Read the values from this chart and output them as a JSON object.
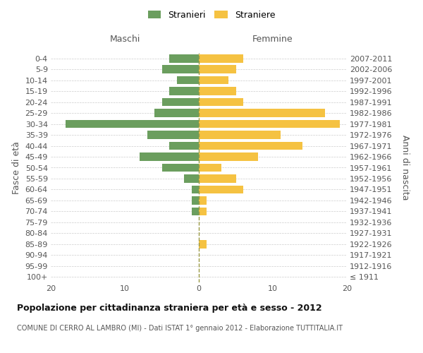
{
  "age_groups": [
    "100+",
    "95-99",
    "90-94",
    "85-89",
    "80-84",
    "75-79",
    "70-74",
    "65-69",
    "60-64",
    "55-59",
    "50-54",
    "45-49",
    "40-44",
    "35-39",
    "30-34",
    "25-29",
    "20-24",
    "15-19",
    "10-14",
    "5-9",
    "0-4"
  ],
  "birth_years": [
    "≤ 1911",
    "1912-1916",
    "1917-1921",
    "1922-1926",
    "1927-1931",
    "1932-1936",
    "1937-1941",
    "1942-1946",
    "1947-1951",
    "1952-1956",
    "1957-1961",
    "1962-1966",
    "1967-1971",
    "1972-1976",
    "1977-1981",
    "1982-1986",
    "1987-1991",
    "1992-1996",
    "1997-2001",
    "2002-2006",
    "2007-2011"
  ],
  "males": [
    0,
    0,
    0,
    0,
    0,
    0,
    1,
    1,
    1,
    2,
    5,
    8,
    4,
    7,
    18,
    6,
    5,
    4,
    3,
    5,
    4
  ],
  "females": [
    0,
    0,
    0,
    1,
    0,
    0,
    1,
    1,
    6,
    5,
    3,
    8,
    14,
    11,
    19,
    17,
    6,
    5,
    4,
    5,
    6
  ],
  "male_color": "#6b9e5e",
  "female_color": "#f5c242",
  "grid_color": "#cccccc",
  "center_line_color": "#999944",
  "title": "Popolazione per cittadinanza straniera per età e sesso - 2012",
  "subtitle": "COMUNE DI CERRO AL LAMBRO (MI) - Dati ISTAT 1° gennaio 2012 - Elaborazione TUTTITALIA.IT",
  "ylabel_left": "Fasce di età",
  "ylabel_right": "Anni di nascita",
  "xlabel_left": "Maschi",
  "xlabel_right": "Femmine",
  "legend_stranieri": "Stranieri",
  "legend_straniere": "Straniere",
  "xlim": 20,
  "bar_height": 0.75,
  "tick_fontsize": 8,
  "label_fontsize": 9,
  "title_fontsize": 9,
  "subtitle_fontsize": 7
}
